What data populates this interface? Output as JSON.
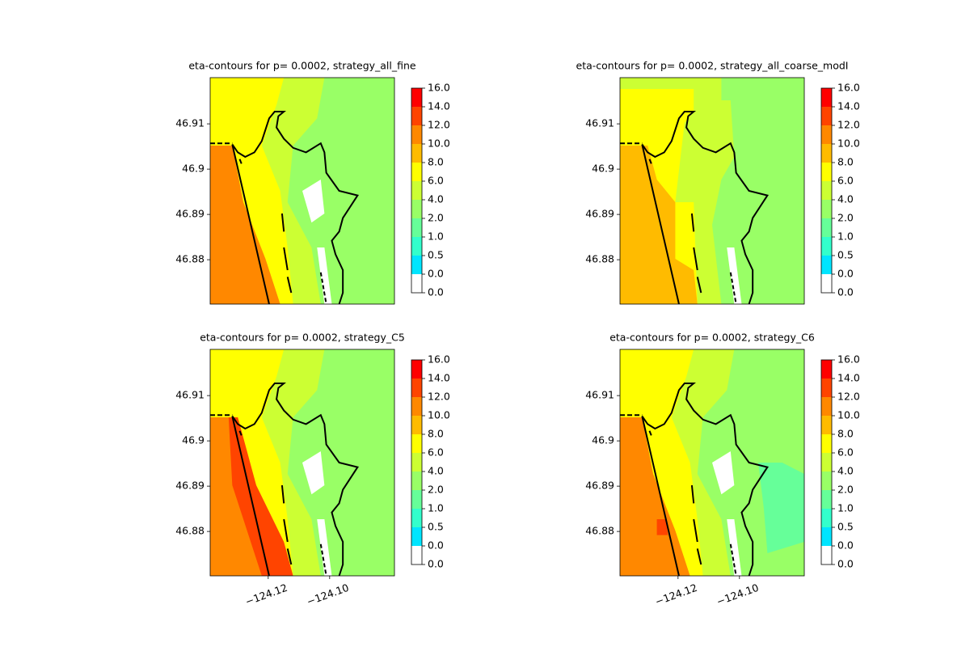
{
  "chart_data": [
    {
      "type": "contour",
      "title": "eta-contours for p= 0.0002, strategy_all_fine",
      "xlim": [
        -124.1389,
        -124.0789
      ],
      "ylim": [
        46.8702,
        46.9202
      ],
      "yticks": [
        46.88,
        46.89,
        46.9,
        46.91
      ],
      "levels": [
        {
          "value": 0,
          "label": "0.0"
        },
        {
          "value": 0,
          "label": "0.0"
        },
        {
          "value": 0.5,
          "label": "0.5"
        },
        {
          "value": 1,
          "label": "1.0"
        },
        {
          "value": 2,
          "label": "2.0"
        },
        {
          "value": 4,
          "label": "4.0"
        },
        {
          "value": 6,
          "label": "6.0"
        },
        {
          "value": 8,
          "label": "8.0"
        },
        {
          "value": 10,
          "label": "10.0"
        },
        {
          "value": 12,
          "label": "12.0"
        },
        {
          "value": 14,
          "label": "14.0"
        },
        {
          "value": 16,
          "label": "16.0"
        }
      ],
      "colors": [
        "#ffffff",
        "#00e5ff",
        "#33ffcc",
        "#66ff99",
        "#99ff66",
        "#ccff33",
        "#ffff00",
        "#ffbb00",
        "#ff8800",
        "#ff4400",
        "#ff0000"
      ]
    },
    {
      "type": "contour",
      "title": "eta-contours for p= 0.0002, strategy_all_coarse_modI",
      "xlim": [
        -124.1389,
        -124.0789
      ],
      "ylim": [
        46.8702,
        46.9202
      ],
      "yticks": [
        46.88,
        46.89,
        46.9,
        46.91
      ],
      "levels": [
        {
          "value": 0,
          "label": "0.0"
        },
        {
          "value": 0,
          "label": "0.0"
        },
        {
          "value": 0.5,
          "label": "0.5"
        },
        {
          "value": 1,
          "label": "1.0"
        },
        {
          "value": 2,
          "label": "2.0"
        },
        {
          "value": 4,
          "label": "4.0"
        },
        {
          "value": 6,
          "label": "6.0"
        },
        {
          "value": 8,
          "label": "8.0"
        },
        {
          "value": 10,
          "label": "10.0"
        },
        {
          "value": 12,
          "label": "12.0"
        },
        {
          "value": 14,
          "label": "14.0"
        },
        {
          "value": 16,
          "label": "16.0"
        }
      ],
      "colors": [
        "#ffffff",
        "#00e5ff",
        "#33ffcc",
        "#66ff99",
        "#99ff66",
        "#ccff33",
        "#ffff00",
        "#ffbb00",
        "#ff8800",
        "#ff4400",
        "#ff0000"
      ]
    },
    {
      "type": "contour",
      "title": "eta-contours for p= 0.0002, strategy_C5",
      "xlim": [
        -124.1389,
        -124.0789
      ],
      "ylim": [
        46.8702,
        46.9202
      ],
      "xticks": [
        {
          "value": -124.12,
          "label": "−124.12"
        },
        {
          "value": -124.1,
          "label": "−124.10"
        }
      ],
      "yticks": [
        46.88,
        46.89,
        46.9,
        46.91
      ],
      "levels": [
        {
          "value": 0,
          "label": "0.0"
        },
        {
          "value": 0,
          "label": "0.0"
        },
        {
          "value": 0.5,
          "label": "0.5"
        },
        {
          "value": 1,
          "label": "1.0"
        },
        {
          "value": 2,
          "label": "2.0"
        },
        {
          "value": 4,
          "label": "4.0"
        },
        {
          "value": 6,
          "label": "6.0"
        },
        {
          "value": 8,
          "label": "8.0"
        },
        {
          "value": 10,
          "label": "10.0"
        },
        {
          "value": 12,
          "label": "12.0"
        },
        {
          "value": 14,
          "label": "14.0"
        },
        {
          "value": 16,
          "label": "16.0"
        }
      ],
      "colors": [
        "#ffffff",
        "#00e5ff",
        "#33ffcc",
        "#66ff99",
        "#99ff66",
        "#ccff33",
        "#ffff00",
        "#ffbb00",
        "#ff8800",
        "#ff4400",
        "#ff0000"
      ]
    },
    {
      "type": "contour",
      "title": "eta-contours for p= 0.0002, strategy_C6",
      "xlim": [
        -124.1389,
        -124.0789
      ],
      "ylim": [
        46.8702,
        46.9202
      ],
      "xticks": [
        {
          "value": -124.12,
          "label": "−124.12"
        },
        {
          "value": -124.1,
          "label": "−124.10"
        }
      ],
      "yticks": [
        46.88,
        46.89,
        46.9,
        46.91
      ],
      "levels": [
        {
          "value": 0,
          "label": "0.0"
        },
        {
          "value": 0,
          "label": "0.0"
        },
        {
          "value": 0.5,
          "label": "0.5"
        },
        {
          "value": 1,
          "label": "1.0"
        },
        {
          "value": 2,
          "label": "2.0"
        },
        {
          "value": 4,
          "label": "4.0"
        },
        {
          "value": 6,
          "label": "6.0"
        },
        {
          "value": 8,
          "label": "8.0"
        },
        {
          "value": 10,
          "label": "10.0"
        },
        {
          "value": 12,
          "label": "12.0"
        },
        {
          "value": 14,
          "label": "14.0"
        },
        {
          "value": 16,
          "label": "16.0"
        }
      ],
      "colors": [
        "#ffffff",
        "#00e5ff",
        "#33ffcc",
        "#66ff99",
        "#99ff66",
        "#ccff33",
        "#ffff00",
        "#ffbb00",
        "#ff8800",
        "#ff4400",
        "#ff0000"
      ]
    }
  ]
}
